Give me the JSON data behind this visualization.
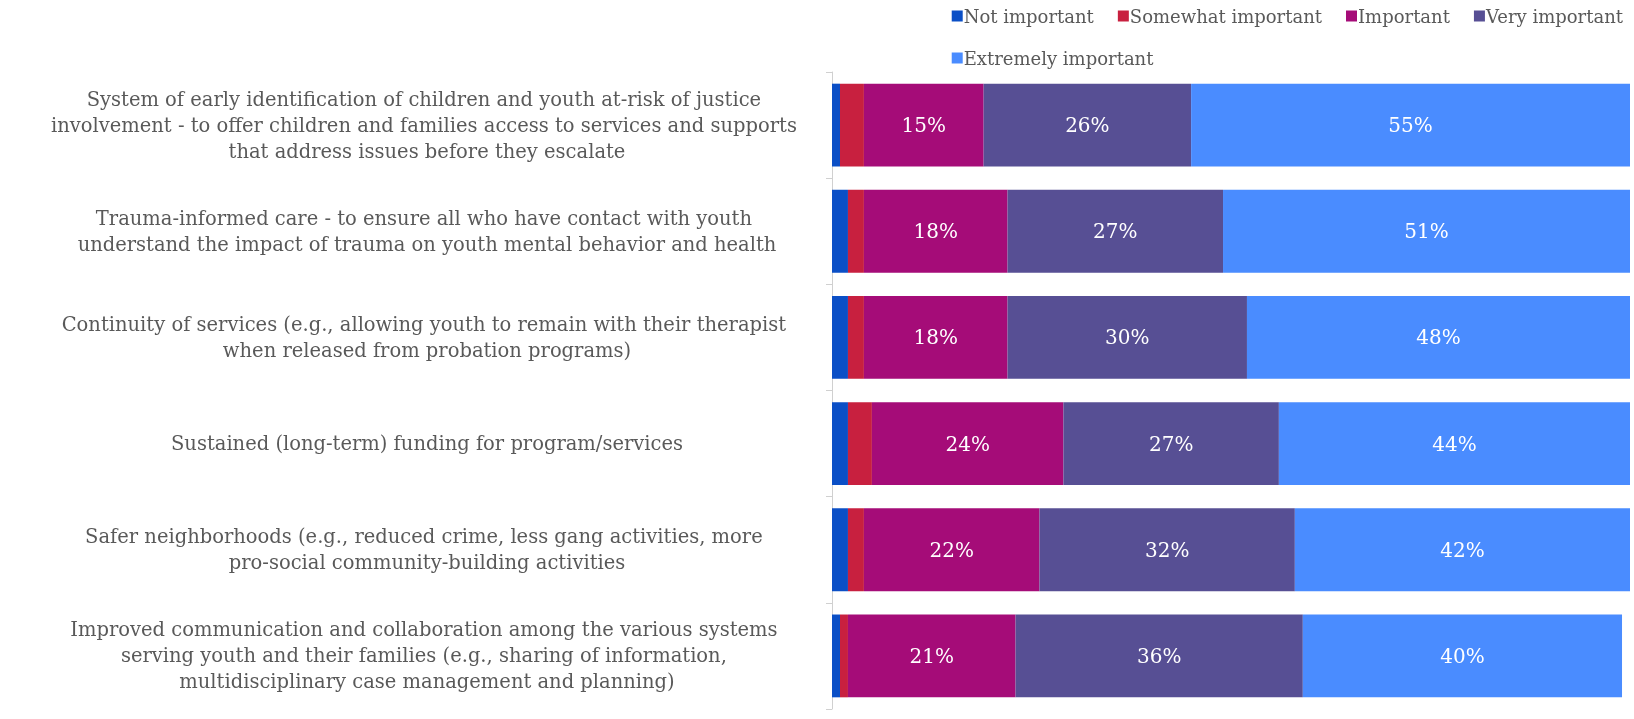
{
  "chart_data": {
    "type": "bar",
    "orientation": "horizontal",
    "stacked": true,
    "legend": "top right",
    "xlim": [
      0,
      100
    ],
    "tick_labels": "y",
    "categories": [
      "System of early identification of children and youth at-risk of justice involvement - to offer children and families access to services and supports that address issues before they escalate",
      "Trauma-informed care - to ensure all who have contact with youth understand the impact of trauma on youth mental behavior and health",
      "Continuity of services (e.g., allowing youth to remain with their therapist when released from probation programs)",
      "Sustained (long-term) funding for program/services",
      "Safer neighborhoods (e.g., reduced crime, less gang activities, more pro-social community-building activities",
      "Improved communication and collaboration among the various systems serving youth and their families (e.g., sharing of information, multidisciplinary case management and planning)"
    ],
    "series": [
      {
        "name": "Not important",
        "color": "#0b4fc6",
        "values": [
          1,
          2,
          2,
          2,
          2,
          1
        ],
        "value_labels": [
          null,
          null,
          null,
          null,
          null,
          null
        ]
      },
      {
        "name": "Somewhat important",
        "color": "#c8203f",
        "values": [
          3,
          2,
          2,
          3,
          2,
          1
        ],
        "value_labels": [
          null,
          null,
          null,
          null,
          null,
          null
        ]
      },
      {
        "name": "Important",
        "color": "#a50c78",
        "values": [
          15,
          18,
          18,
          24,
          22,
          21
        ],
        "value_labels": [
          "15%",
          "18%",
          "18%",
          "24%",
          "22%",
          "21%"
        ]
      },
      {
        "name": "Very important",
        "color": "#574f94",
        "values": [
          26,
          27,
          30,
          27,
          32,
          36
        ],
        "value_labels": [
          "26%",
          "27%",
          "30%",
          "27%",
          "32%",
          "36%"
        ]
      },
      {
        "name": "Extremely important",
        "color": "#4a8cff",
        "values": [
          55,
          51,
          48,
          44,
          42,
          40
        ],
        "value_labels": [
          "55%",
          "51%",
          "48%",
          "44%",
          "42%",
          "40%"
        ]
      }
    ]
  }
}
